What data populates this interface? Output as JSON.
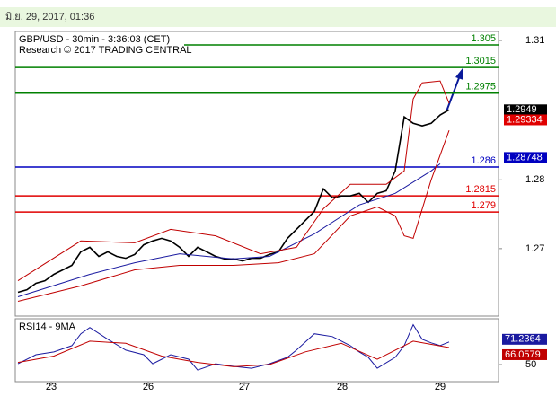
{
  "header": {
    "timestamp": "มิ.ย. 29, 2017, 01:36"
  },
  "chart_data": [
    {
      "type": "line",
      "title": "GBP/USD - 30min - 3:36:03 (CET)",
      "subtitle": "Research © 2017 TRADING CENTRAL",
      "xlim": [
        -0.3,
        53.5
      ],
      "ylim": [
        1.2628,
        1.3071
      ],
      "yticks": [
        {
          "value": 1.3057,
          "label": "1.31"
        },
        {
          "value": 1.284,
          "label": "1.28"
        },
        {
          "value": 1.2733,
          "label": "1.27"
        }
      ],
      "xticks": [
        {
          "value": 3.7,
          "label": "23"
        },
        {
          "value": 14.5,
          "label": "26"
        },
        {
          "value": 25.2,
          "label": "27"
        },
        {
          "value": 36.1,
          "label": "28"
        },
        {
          "value": 47.0,
          "label": "29"
        }
      ],
      "series": [
        {
          "color": "#000000",
          "x": [
            0,
            1,
            2,
            3,
            4,
            5,
            6,
            7,
            8,
            9,
            10,
            11,
            12,
            13,
            14,
            15,
            16,
            17,
            18,
            19,
            20,
            21,
            22,
            23,
            24,
            25,
            26,
            27,
            28,
            29,
            30,
            31,
            32,
            33,
            34,
            35,
            36,
            37,
            38,
            39,
            40,
            41,
            42,
            43,
            44,
            45,
            46,
            47,
            48
          ],
          "values": [
            1.2665,
            1.2669,
            1.2679,
            1.2683,
            1.2693,
            1.27,
            1.2707,
            1.2728,
            1.2735,
            1.2721,
            1.2728,
            1.2721,
            1.2718,
            1.2724,
            1.2739,
            1.2745,
            1.2749,
            1.2745,
            1.2735,
            1.2721,
            1.2735,
            1.2728,
            1.2721,
            1.2717,
            1.2717,
            1.2714,
            1.2718,
            1.2718,
            1.2724,
            1.2728,
            1.2749,
            1.2763,
            1.2777,
            1.2791,
            1.2826,
            1.2812,
            1.2815,
            1.2815,
            1.2819,
            1.2805,
            1.2819,
            1.2823,
            1.2854,
            1.2938,
            1.2928,
            1.2924,
            1.2928,
            1.2941,
            1.2949
          ]
        },
        {
          "color": "#1a1aa0",
          "x": [
            0,
            8,
            13,
            18,
            24,
            28,
            33,
            38,
            42,
            46,
            47
          ],
          "values": [
            1.2658,
            1.2693,
            1.2711,
            1.2725,
            1.2717,
            1.2721,
            1.2756,
            1.2801,
            1.2819,
            1.2854,
            1.2865
          ]
        },
        {
          "color": "#c00000",
          "x": [
            0,
            7,
            13,
            17,
            22,
            27,
            31,
            34,
            37,
            41,
            43,
            44,
            45,
            47,
            48
          ],
          "values": [
            1.2683,
            1.2745,
            1.2742,
            1.2763,
            1.2753,
            1.2725,
            1.2735,
            1.2795,
            1.2833,
            1.2833,
            1.2854,
            1.2966,
            1.2991,
            1.2994,
            1.2959
          ]
        },
        {
          "color": "#c00000",
          "x": [
            0,
            7,
            13,
            18,
            24,
            29,
            33,
            37,
            40,
            42,
            43,
            44,
            46,
            48
          ],
          "values": [
            1.2651,
            1.2675,
            1.27,
            1.2707,
            1.2707,
            1.2711,
            1.2725,
            1.2784,
            1.2798,
            1.2784,
            1.2753,
            1.2749,
            1.284,
            1.2917
          ]
        }
      ],
      "levels": [
        {
          "value": 1.305,
          "color": "#008000"
        },
        {
          "value": 1.3015,
          "color": "#008000"
        },
        {
          "value": 1.2975,
          "color": "#008000"
        },
        {
          "value": 1.286,
          "color": "#0000c0"
        },
        {
          "value": 1.2815,
          "color": "#e00000"
        },
        {
          "value": 1.279,
          "color": "#e00000"
        }
      ],
      "price_boxes": [
        {
          "value": 1.2949,
          "color": "#000000"
        },
        {
          "value": 1.29334,
          "color": "#e00000"
        },
        {
          "value": 1.28748,
          "color": "#0000c0"
        }
      ]
    },
    {
      "type": "line",
      "title": "RSI14 - 9MA",
      "xlim": [
        -0.3,
        53.5
      ],
      "ylim": [
        34,
        93
      ],
      "yticks": [
        50
      ],
      "series": [
        {
          "color": "#1a1aa0",
          "x": [
            0,
            2,
            4,
            6,
            7,
            8,
            10,
            12,
            14,
            15,
            17,
            19,
            20,
            22,
            24,
            26,
            28,
            30,
            31,
            33,
            35,
            37,
            38,
            39,
            40,
            42,
            43,
            44,
            45,
            46,
            47,
            48
          ],
          "values": [
            50.8,
            59.3,
            61.9,
            67.8,
            78.9,
            84.8,
            73.8,
            63.6,
            59.3,
            50.8,
            59.3,
            55.1,
            44.9,
            50.8,
            48.3,
            46.6,
            50.8,
            56.8,
            63.6,
            78.9,
            76.3,
            67.8,
            61.9,
            56.8,
            46.6,
            56.8,
            67.8,
            87.4,
            73.8,
            70.4,
            67.8,
            71.2364
          ]
        },
        {
          "color": "#c00000",
          "x": [
            0,
            4,
            8,
            12,
            16,
            20,
            24,
            28,
            32,
            36,
            40,
            44,
            48
          ],
          "values": [
            52,
            58,
            72,
            70,
            58,
            52,
            48,
            50,
            62,
            70,
            55,
            72,
            66.0579
          ]
        }
      ]
    }
  ]
}
